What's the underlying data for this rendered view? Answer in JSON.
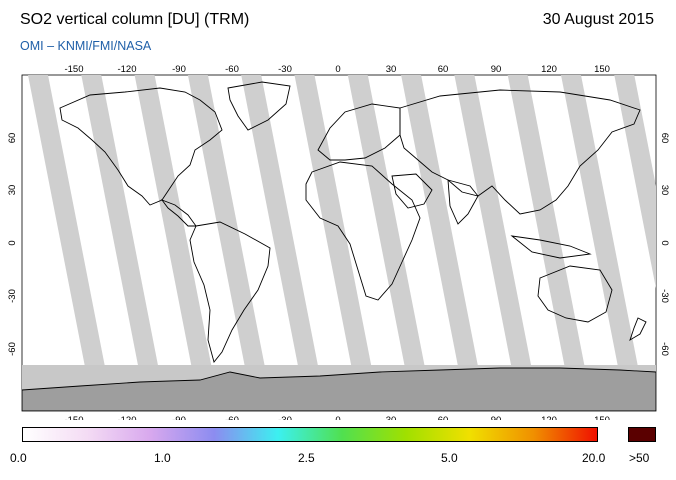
{
  "header": {
    "title": "SO2 vertical column [DU] (TRM)",
    "date": "30 August 2015",
    "credit": "OMI  –  KNMI/FMI/NASA"
  },
  "map": {
    "projection": "equirectangular",
    "lon_ticks": [
      "-150",
      "-120",
      "-90",
      "-60",
      "-30",
      "0",
      "30",
      "60",
      "90",
      "120",
      "150"
    ],
    "lat_ticks": [
      "60",
      "30",
      "0",
      "-30",
      "-60"
    ],
    "land_color": "#9e9e9e",
    "swath_color": "#cfcfcf",
    "background_color": "#ffffff"
  },
  "colorbar": {
    "labels": [
      "0.0",
      "1.0",
      "2.5",
      "5.0",
      "20.0",
      ">50"
    ],
    "stops": [
      "#ffffff",
      "#f4dcf4",
      "#d8a8ee",
      "#8c8cf0",
      "#3cf0f0",
      "#50e050",
      "#a0e000",
      "#f0e000",
      "#f09000",
      "#f01000"
    ],
    "over_color": "#5a0000"
  }
}
